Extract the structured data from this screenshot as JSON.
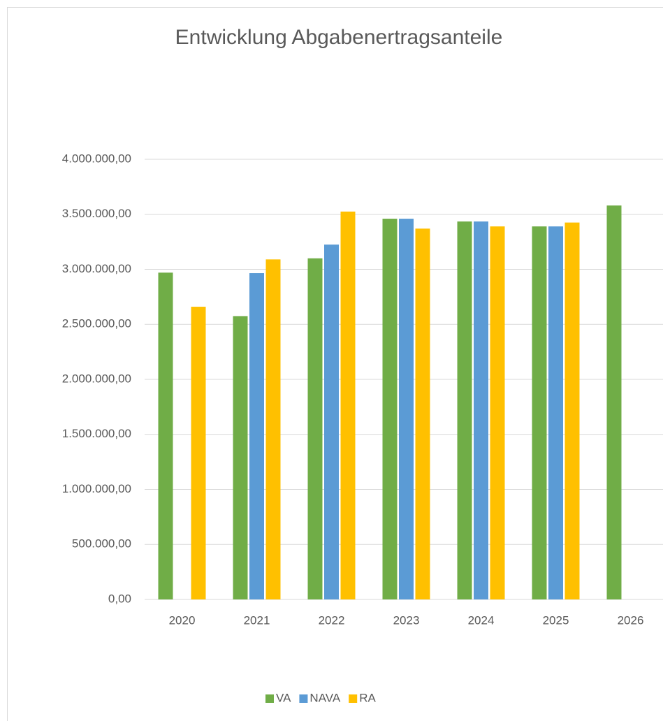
{
  "chart_data": {
    "type": "bar",
    "title": "Entwicklung Abgabenertragsanteile",
    "categories": [
      "2020",
      "2021",
      "2022",
      "2023",
      "2024",
      "2025",
      "2026"
    ],
    "series": [
      {
        "name": "VA",
        "color": "#70ad47",
        "values": [
          2970000,
          2575000,
          3100000,
          3460000,
          3435000,
          3390000,
          3580000
        ]
      },
      {
        "name": "NAVA",
        "color": "#5b9bd5",
        "values": [
          null,
          2965000,
          3225000,
          3460000,
          3435000,
          3390000,
          null
        ]
      },
      {
        "name": "RA",
        "color": "#ffc000",
        "values": [
          2660000,
          3090000,
          3525000,
          3370000,
          3390000,
          3425000,
          null
        ]
      }
    ],
    "ylim": [
      0,
      4000000
    ],
    "yticks": [
      {
        "value": 0,
        "label": "0,00"
      },
      {
        "value": 500000,
        "label": "500.000,00"
      },
      {
        "value": 1000000,
        "label": "1.000.000,00"
      },
      {
        "value": 1500000,
        "label": "1.500.000,00"
      },
      {
        "value": 2000000,
        "label": "2.000.000,00"
      },
      {
        "value": 2500000,
        "label": "2.500.000,00"
      },
      {
        "value": 3000000,
        "label": "3.000.000,00"
      },
      {
        "value": 3500000,
        "label": "3.500.000,00"
      },
      {
        "value": 4000000,
        "label": "4.000.000,00"
      }
    ],
    "grid": true,
    "legend": "bottom"
  }
}
